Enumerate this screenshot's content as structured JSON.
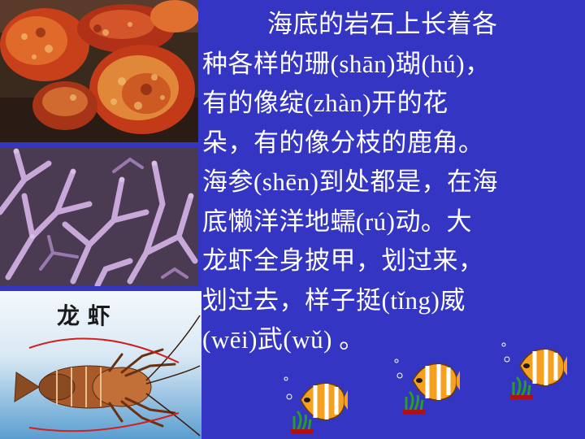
{
  "paragraph": {
    "lines": [
      "海底的岩石上长着各",
      "种各样的珊(shān)瑚(hú)，",
      "有的像绽(zhàn)开的花",
      "朵，有的像分枝的鹿角。",
      "海参(shēn)到处都是，在海",
      "底懒洋洋地蠕(rú)动。大",
      "龙虾全身披甲，划过来，",
      "划过去，样子挺(tǐng)威",
      "(wēi)武(wǔ) 。"
    ]
  },
  "photos": {
    "lobster_caption": "龙 虾"
  },
  "colors": {
    "background": "#3535c4",
    "text": "#ffffff"
  },
  "icons": [
    "coral-photo",
    "coral-photo",
    "lobster-photo",
    "clownfish-icon",
    "clownfish-icon",
    "clownfish-icon"
  ]
}
